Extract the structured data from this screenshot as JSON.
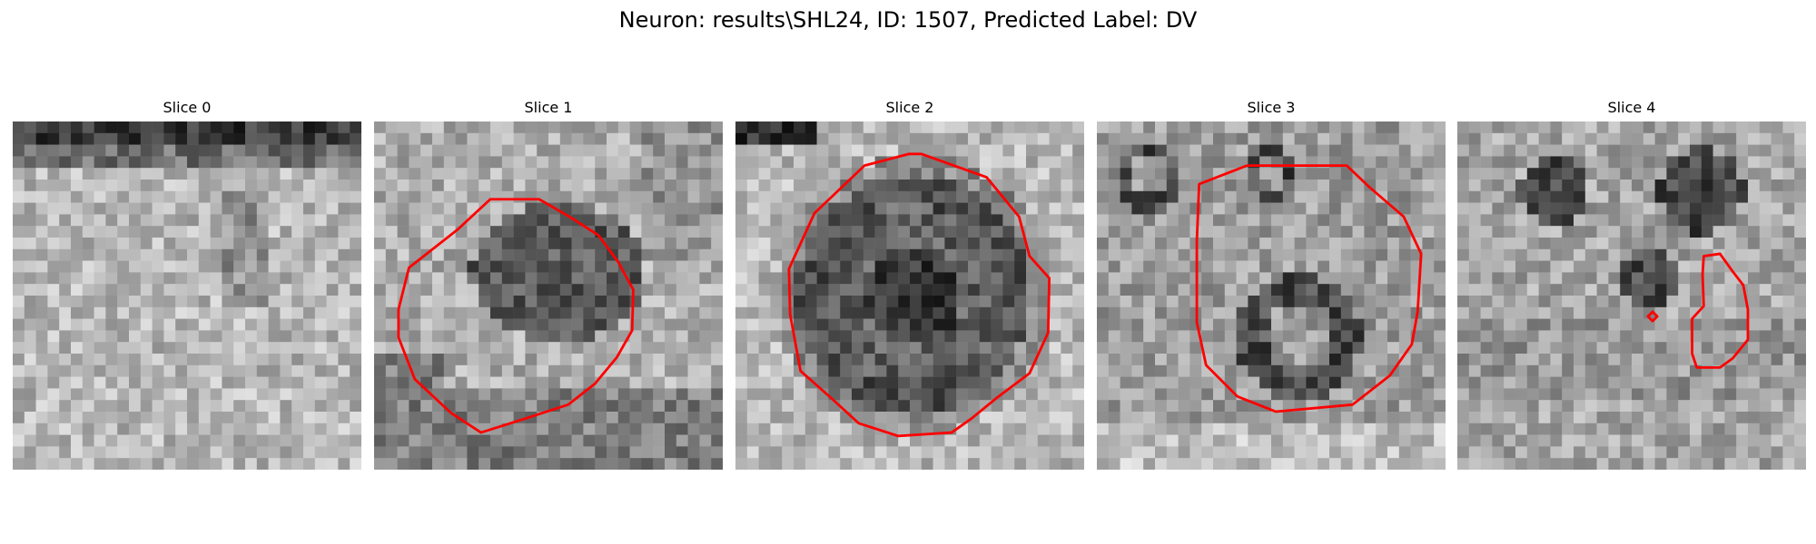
{
  "figure": {
    "title": "Neuron: results\\SHL24, ID: 1507, Predicted Label: DV"
  },
  "panels": [
    {
      "title": "Slice 0"
    },
    {
      "title": "Slice 1"
    },
    {
      "title": "Slice 2"
    },
    {
      "title": "Slice 3"
    },
    {
      "title": "Slice 4"
    }
  ],
  "colors": {
    "contour": "#ff0000"
  }
}
